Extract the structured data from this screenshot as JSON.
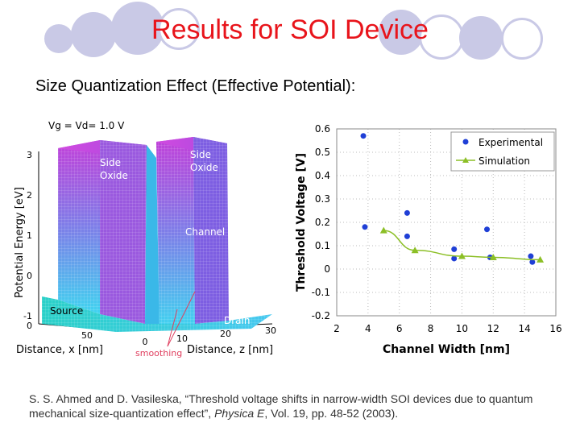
{
  "slide": {
    "title": "Results for SOI Device",
    "subtitle": "Size Quantization Effect (Effective Potential):",
    "citation": {
      "prefix": "S. S. Ahmed and D. Vasileska, “Threshold voltage shifts in narrow-width SOI devices due to quantum mechanical size-quantization effect”, ",
      "journal": "Physica E",
      "suffix": ", Vol. 19, pp. 48-52 (2003)."
    }
  },
  "surface_plot": {
    "bias_label": "Vg = Vd= 1.0 V",
    "zlabel": "Potential Energy [eV]",
    "z_ticks": [
      "3",
      "2",
      "1",
      "0",
      "-1"
    ],
    "xlabel": "Distance, x [nm]",
    "x_ticks": [
      "0",
      "50"
    ],
    "zaxis_label": "Distance, z [nm]",
    "z_dist_ticks": [
      "0",
      "10",
      "20",
      "30"
    ],
    "annotations": {
      "side_oxide_left": [
        "Side",
        "Oxide"
      ],
      "side_oxide_right": [
        "Side",
        "Oxide"
      ],
      "channel": "Channel",
      "source": "Source",
      "drain": "Drain",
      "smoothing": "smoothing"
    },
    "colors": {
      "top": "#c040d8",
      "bottom": "#40d8f0",
      "annotation": "#ffffff",
      "smoothing": "#e04060"
    }
  },
  "chart_data": {
    "type": "scatter",
    "xlabel": "Channel Width [nm]",
    "ylabel": "Threshold Voltage [V]",
    "xlim": [
      2,
      16
    ],
    "ylim": [
      -0.2,
      0.6
    ],
    "x_ticks": [
      2,
      4,
      6,
      8,
      10,
      12,
      14,
      16
    ],
    "y_ticks": [
      -0.2,
      -0.1,
      0,
      0.1,
      0.2,
      0.3,
      0.4,
      0.5,
      0.6
    ],
    "legend_position": "top-right",
    "grid": "dotted",
    "series": [
      {
        "name": "Experimental",
        "marker": "circle",
        "color": "#1f3fd6",
        "x": [
          3.7,
          3.8,
          6.5,
          6.5,
          9.5,
          9.5,
          11.6,
          11.8,
          14.4,
          14.5
        ],
        "y": [
          0.57,
          0.18,
          0.24,
          0.14,
          0.085,
          0.045,
          0.17,
          0.05,
          0.055,
          0.03
        ]
      },
      {
        "name": "Simulation",
        "marker": "triangle",
        "color": "#8cbf26",
        "line": true,
        "x": [
          5.0,
          7.0,
          10.0,
          12.0,
          15.0
        ],
        "y": [
          0.165,
          0.08,
          0.055,
          0.05,
          0.04
        ]
      }
    ]
  }
}
